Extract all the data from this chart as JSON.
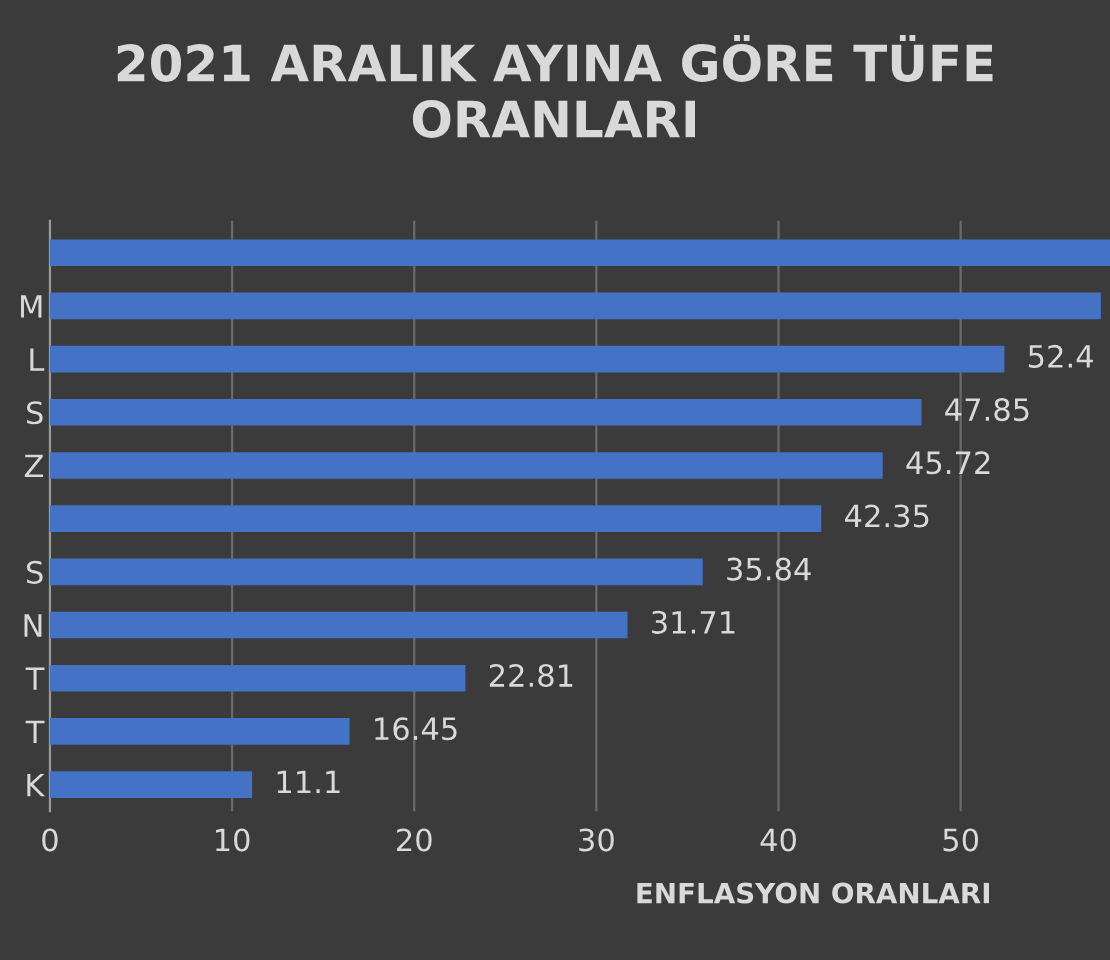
{
  "chart_data": {
    "type": "bar",
    "orientation": "horizontal",
    "title": "2021 ARALIK AYINA GÖRE TÜFE ORANLARI",
    "xlabel": "ENFLASYON ORANLARI",
    "categories": [
      null,
      "M",
      "L",
      "S",
      "Z",
      null,
      "S",
      "N",
      "T",
      "T",
      "K"
    ],
    "values": [
      58.2,
      57.7,
      52.4,
      47.85,
      45.72,
      42.35,
      35.84,
      31.71,
      22.81,
      16.45,
      11.1
    ],
    "value_labels": [
      null,
      null,
      "52.4",
      "47.85",
      "45.72",
      "42.35",
      "35.84",
      "31.71",
      "22.81",
      "16.45",
      "11.1"
    ],
    "color": "#4472c4",
    "xlim": [
      0,
      58.2
    ],
    "xticks": [
      0,
      10,
      20,
      30,
      40,
      50
    ],
    "grid": "x",
    "legend": false
  }
}
